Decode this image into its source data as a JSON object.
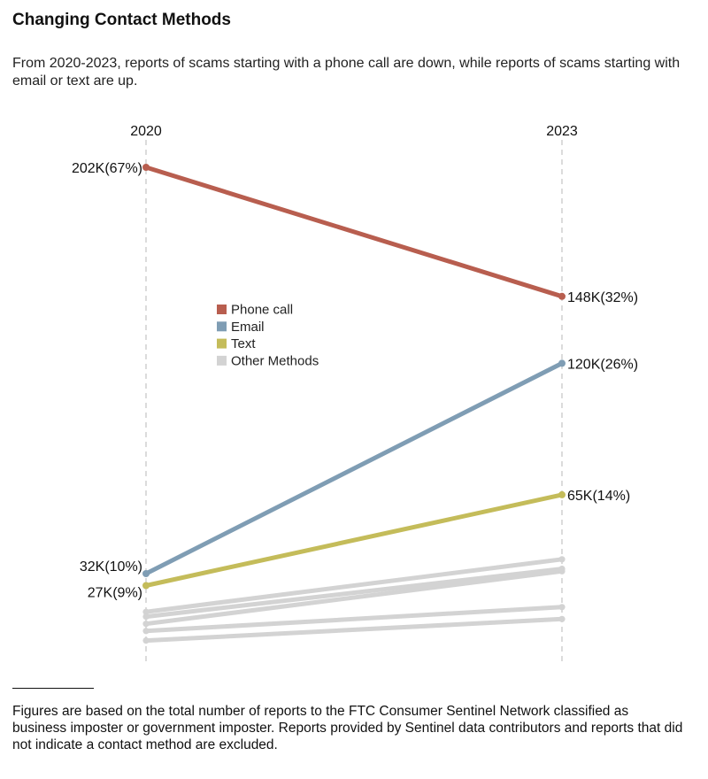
{
  "title": "Changing Contact Methods",
  "subtitle": "From 2020-2023, reports of scams starting with a phone call are down, while reports of scams starting with email or text are up.",
  "footnote": "Figures are based on the total number of reports to the FTC Consumer Sentinel Network classified as business imposter or government imposter. Reports provided by Sentinel data contributors and reports that did not indicate a contact method are excluded.",
  "chart_data": {
    "type": "line",
    "x": [
      "2020",
      "2023"
    ],
    "legend_position": "center-left",
    "grid": false,
    "series": [
      {
        "name": "Phone call",
        "color": "#b85e4f",
        "values": [
          202,
          148
        ],
        "labels": [
          "202K(67%)",
          "148K(32%)"
        ],
        "show_labels": true
      },
      {
        "name": "Email",
        "color": "#7f9db4",
        "values": [
          32,
          120
        ],
        "labels": [
          "32K(10%)",
          "120K(26%)"
        ],
        "show_labels": true
      },
      {
        "name": "Text",
        "color": "#c4bc5a",
        "values": [
          27,
          65
        ],
        "labels": [
          "27K(9%)",
          "65K(14%)"
        ],
        "show_labels": true
      },
      {
        "name": "Other Methods",
        "color": "#d3d3d3",
        "lines": [
          {
            "values": [
              16,
              38
            ]
          },
          {
            "values": [
              14,
              34
            ]
          },
          {
            "values": [
              11,
              33
            ]
          },
          {
            "values": [
              8,
              18
            ]
          },
          {
            "values": [
              4,
              13
            ]
          }
        ]
      }
    ]
  }
}
